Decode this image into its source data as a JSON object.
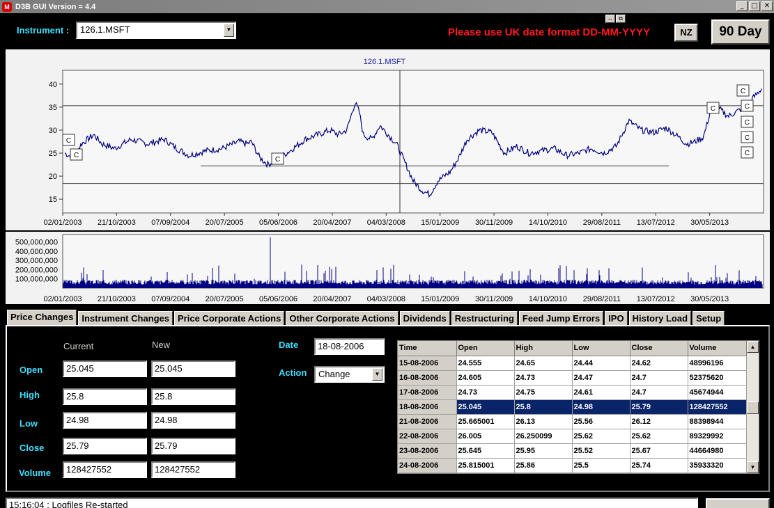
{
  "window": {
    "title": "D3B GUI Version = 4.4",
    "icon_text": "M"
  },
  "header": {
    "instrument_label": "Instrument :",
    "instrument_value": "126.1.MSFT",
    "warning": "Please use UK date format DD-MM-YYYY",
    "nz_button": "NZ",
    "day_button": "90 Day"
  },
  "price_chart": {
    "title": "126.1.MSFT",
    "ylim": [
      12,
      43
    ],
    "y_ticks": [
      15,
      20,
      25,
      30,
      35,
      40
    ],
    "x_tick_labels": [
      "02/01/2003",
      "21/10/2003",
      "07/09/2004",
      "20/07/2005",
      "05/06/2006",
      "20/04/2007",
      "04/03/2008",
      "15/01/2009",
      "30/11/2009",
      "14/10/2010",
      "29/08/2011",
      "13/07/2012",
      "30/05/2013"
    ],
    "line_color": "#000080",
    "markers_label": "C"
  },
  "volume_chart": {
    "ylim": [
      0,
      580000000
    ],
    "y_tick_labels": [
      "500,000,000",
      "400,000,000",
      "300,000,000",
      "200,000,000",
      "100,000,000"
    ],
    "x_tick_labels": [
      "02/01/2003",
      "21/10/2003",
      "07/09/2004",
      "20/07/2005",
      "05/06/2006",
      "20/04/2007",
      "04/03/2008",
      "15/01/2009",
      "30/11/2009",
      "14/10/2010",
      "29/08/2011",
      "13/07/2012",
      "30/05/2013"
    ]
  },
  "tabs": [
    {
      "label": "Price Changes",
      "active": true
    },
    {
      "label": "Instrument Changes"
    },
    {
      "label": "Price Corporate Actions"
    },
    {
      "label": "Other Corporate Actions"
    },
    {
      "label": "Dividends"
    },
    {
      "label": "Restructuring"
    },
    {
      "label": "Feed Jump Errors"
    },
    {
      "label": "IPO"
    },
    {
      "label": "History Load"
    },
    {
      "label": "Setup"
    }
  ],
  "form": {
    "current_header": "Current",
    "new_header": "New",
    "open_label": "Open",
    "high_label": "High",
    "low_label": "Low",
    "close_label": "Close",
    "volume_label": "Volume",
    "open_current": "25.045",
    "open_new": "25.045",
    "high_current": "25.8",
    "high_new": "25.8",
    "low_current": "24.98",
    "low_new": "24.98",
    "close_current": "25.79",
    "close_new": "25.79",
    "volume_current": "128427552",
    "volume_new": "128427552",
    "date_label": "Date",
    "date_value": "18-08-2006",
    "action_label": "Action",
    "action_value": "Change"
  },
  "grid": {
    "columns": [
      "Time",
      "Open",
      "High",
      "Low",
      "Close",
      "Volume"
    ],
    "rows": [
      [
        "15-08-2006",
        "24.555",
        "24.65",
        "24.44",
        "24.62",
        "48996196"
      ],
      [
        "16-08-2006",
        "24.605",
        "24.73",
        "24.47",
        "24.7",
        "52375620"
      ],
      [
        "17-08-2006",
        "24.73",
        "24.75",
        "24.61",
        "24.7",
        "45674944"
      ],
      [
        "18-08-2006",
        "25.045",
        "25.8",
        "24.98",
        "25.79",
        "128427552"
      ],
      [
        "21-08-2006",
        "25.665001",
        "26.13",
        "25.56",
        "26.12",
        "88398944"
      ],
      [
        "22-08-2006",
        "26.005",
        "26.250099",
        "25.62",
        "25.62",
        "89329992"
      ],
      [
        "23-08-2006",
        "25.645",
        "25.95",
        "25.52",
        "25.67",
        "44664980"
      ],
      [
        "24-08-2006",
        "25.815001",
        "25.86",
        "25.5",
        "25.74",
        "35933320"
      ]
    ],
    "selected_row": 3
  },
  "log": {
    "text": "15:16:04 : Logfiles Re-started"
  }
}
